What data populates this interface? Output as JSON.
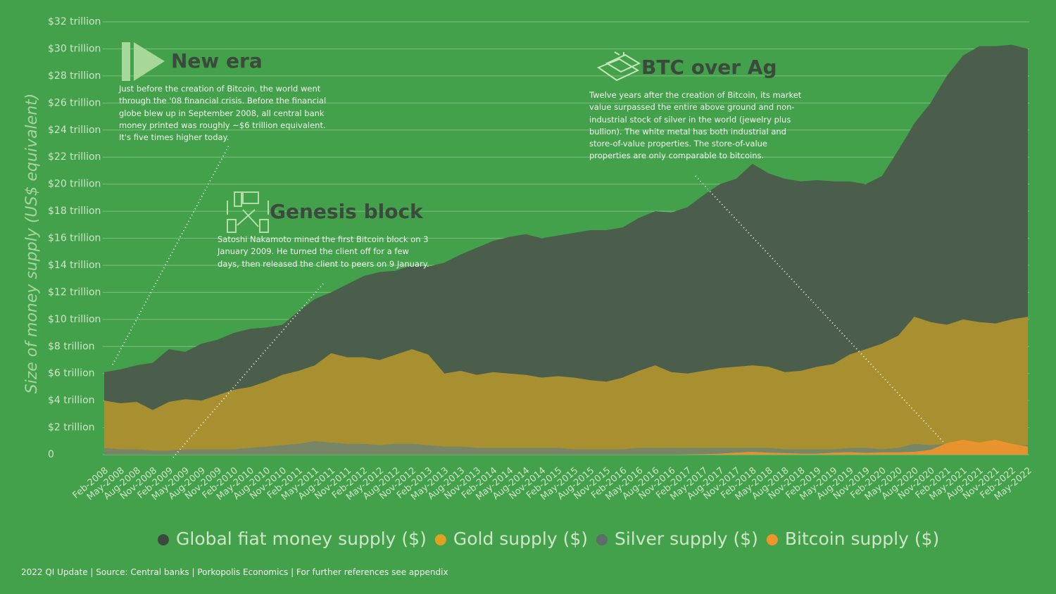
{
  "chart_data": {
    "type": "area",
    "y_label": "Size of money supply (US$ equivalent)",
    "categories": [
      "Feb-2008",
      "May-2008",
      "Aug-2008",
      "Nov-2008",
      "Feb-2009",
      "May-2009",
      "Aug-2009",
      "Nov-2009",
      "Feb-2010",
      "May-2010",
      "Aug-2010",
      "Nov-2010",
      "Feb-2011",
      "May-2011",
      "Aug-2011",
      "Nov-2011",
      "Feb-2012",
      "May-2012",
      "Aug-2012",
      "Nov-2012",
      "Feb-2013",
      "May-2013",
      "Aug-2013",
      "Nov-2013",
      "Feb-2014",
      "May-2014",
      "Aug-2014",
      "Nov-2014",
      "Feb-2015",
      "May-2015",
      "Aug-2015",
      "Nov-2015",
      "Feb-2016",
      "May-2016",
      "Aug-2016",
      "Nov-2016",
      "Feb-2017",
      "May-2017",
      "Aug-2017",
      "Nov-2017",
      "Feb-2018",
      "May-2018",
      "Aug-2018",
      "Nov-2018",
      "Feb-2019",
      "May-2019",
      "Aug-2019",
      "Nov-2019",
      "Feb-2020",
      "May-2020",
      "Aug-2020",
      "Nov-2020",
      "Feb-2021",
      "May-2021",
      "Aug-2021",
      "Nov-2021",
      "Feb-2022",
      "May-2022"
    ],
    "series": [
      {
        "name": "Global fiat money supply ($)",
        "color": "#4a5e4b",
        "legend_color": "#3c4a3d",
        "values": [
          6.1,
          6.3,
          6.6,
          6.8,
          7.8,
          7.6,
          8.2,
          8.5,
          9.0,
          9.3,
          9.4,
          9.6,
          10.6,
          11.5,
          12.0,
          12.6,
          13.2,
          13.5,
          13.6,
          14.0,
          13.9,
          14.2,
          14.8,
          15.3,
          15.8,
          16.1,
          16.3,
          16.0,
          16.2,
          16.4,
          16.6,
          16.6,
          16.8,
          17.5,
          18.0,
          17.9,
          18.3,
          19.2,
          20.0,
          20.4,
          21.5,
          20.8,
          20.4,
          20.2,
          20.3,
          20.2,
          20.2,
          20.0,
          20.6,
          22.5,
          24.5,
          26.0,
          28.0,
          29.5,
          30.2,
          30.2,
          30.3,
          30.0
        ]
      },
      {
        "name": "Gold supply ($)",
        "color": "#b0952f",
        "legend_color": "#e0a122",
        "values": [
          4.0,
          3.8,
          3.9,
          3.3,
          3.9,
          4.1,
          4.0,
          4.4,
          4.8,
          5.0,
          5.4,
          5.9,
          6.2,
          6.6,
          7.5,
          7.2,
          7.2,
          7.0,
          7.4,
          7.8,
          7.4,
          6.0,
          6.2,
          5.9,
          6.1,
          6.0,
          5.9,
          5.7,
          5.8,
          5.7,
          5.5,
          5.4,
          5.7,
          6.2,
          6.6,
          6.1,
          6.0,
          6.2,
          6.4,
          6.5,
          6.6,
          6.5,
          6.1,
          6.2,
          6.5,
          6.7,
          7.4,
          7.8,
          8.2,
          8.8,
          10.2,
          9.8,
          9.6,
          10.0,
          9.8,
          9.7,
          10.0,
          10.2
        ]
      },
      {
        "name": "Silver supply ($)",
        "color": "#72866b",
        "legend_color": "#5f6d6a",
        "values": [
          0.5,
          0.4,
          0.4,
          0.3,
          0.3,
          0.4,
          0.4,
          0.4,
          0.4,
          0.5,
          0.6,
          0.7,
          0.8,
          1.0,
          0.9,
          0.8,
          0.8,
          0.7,
          0.8,
          0.8,
          0.7,
          0.6,
          0.6,
          0.5,
          0.5,
          0.5,
          0.5,
          0.5,
          0.5,
          0.4,
          0.4,
          0.4,
          0.4,
          0.5,
          0.5,
          0.5,
          0.5,
          0.5,
          0.5,
          0.5,
          0.5,
          0.5,
          0.4,
          0.4,
          0.4,
          0.4,
          0.5,
          0.5,
          0.4,
          0.5,
          0.8,
          0.7,
          0.8,
          0.8,
          0.7,
          0.7,
          0.7,
          0.7
        ]
      },
      {
        "name": "Bitcoin supply ($)",
        "color": "#f0952a",
        "legend_color": "#f0952a",
        "values": [
          0,
          0,
          0,
          0,
          0,
          0,
          0,
          0,
          0,
          0,
          0,
          0,
          0,
          0,
          0,
          0,
          0,
          0,
          0,
          0,
          0,
          0,
          0,
          0,
          0,
          0,
          0,
          0,
          0,
          0,
          0,
          0,
          0,
          0,
          0,
          0,
          0.02,
          0.04,
          0.07,
          0.15,
          0.2,
          0.15,
          0.12,
          0.07,
          0.07,
          0.15,
          0.18,
          0.13,
          0.17,
          0.17,
          0.21,
          0.36,
          0.85,
          1.1,
          0.9,
          1.1,
          0.8,
          0.6
        ]
      }
    ],
    "ylim": [
      0,
      32
    ],
    "yticks": [
      0,
      {
        "value": 2,
        "label": "$2 trillion"
      },
      {
        "value": 4,
        "label": "$4 trillion"
      },
      {
        "value": 6,
        "label": "$6 trillion"
      },
      {
        "value": 8,
        "label": "$8 trillion"
      },
      {
        "value": 10,
        "label": "$10 trillion"
      },
      {
        "value": 12,
        "label": "$12 trillion"
      },
      {
        "value": 14,
        "label": "$14 trillion"
      },
      {
        "value": 16,
        "label": "$16 trillion"
      },
      {
        "value": 18,
        "label": "$18 trillion"
      },
      {
        "value": 20,
        "label": "$20 trillion"
      },
      {
        "value": 22,
        "label": "$22 trillion"
      },
      {
        "value": 24,
        "label": "$24 trillion"
      },
      {
        "value": 26,
        "label": "$26 trillion"
      },
      {
        "value": 28,
        "label": "$28 trillion"
      },
      {
        "value": 30,
        "label": "$30 trillion"
      },
      {
        "value": 32,
        "label": "$32 trillion"
      }
    ],
    "grid": true,
    "annotations": [
      {
        "title": "New era",
        "text": "Just before the creation of Bitcoin, the world went through the '08 financial crisis. Before the financial globe blew up in September 2008, all central bank money printed was roughly ~$6 trillion equivalent. It's five times higher today."
      },
      {
        "title": "Genesis block",
        "text": "Satoshi Nakamoto mined the first Bitcoin block on 3 January 2009. He turned the client off for a few days, then released the client to peers on 9 January."
      },
      {
        "title": "BTC over Ag",
        "text": "Twelve years after the creation of Bitcoin, its market value surpassed the entire above ground and non-industrial stock of silver in the world (jewelry plus bullion). The white metal has both industrial and store-of-value properties. The store-of-value properties are only comparable to bitcoins."
      }
    ],
    "footer": "2022 QI Update | Source: Central banks | Porkopolis Economics | For further references see appendix"
  }
}
